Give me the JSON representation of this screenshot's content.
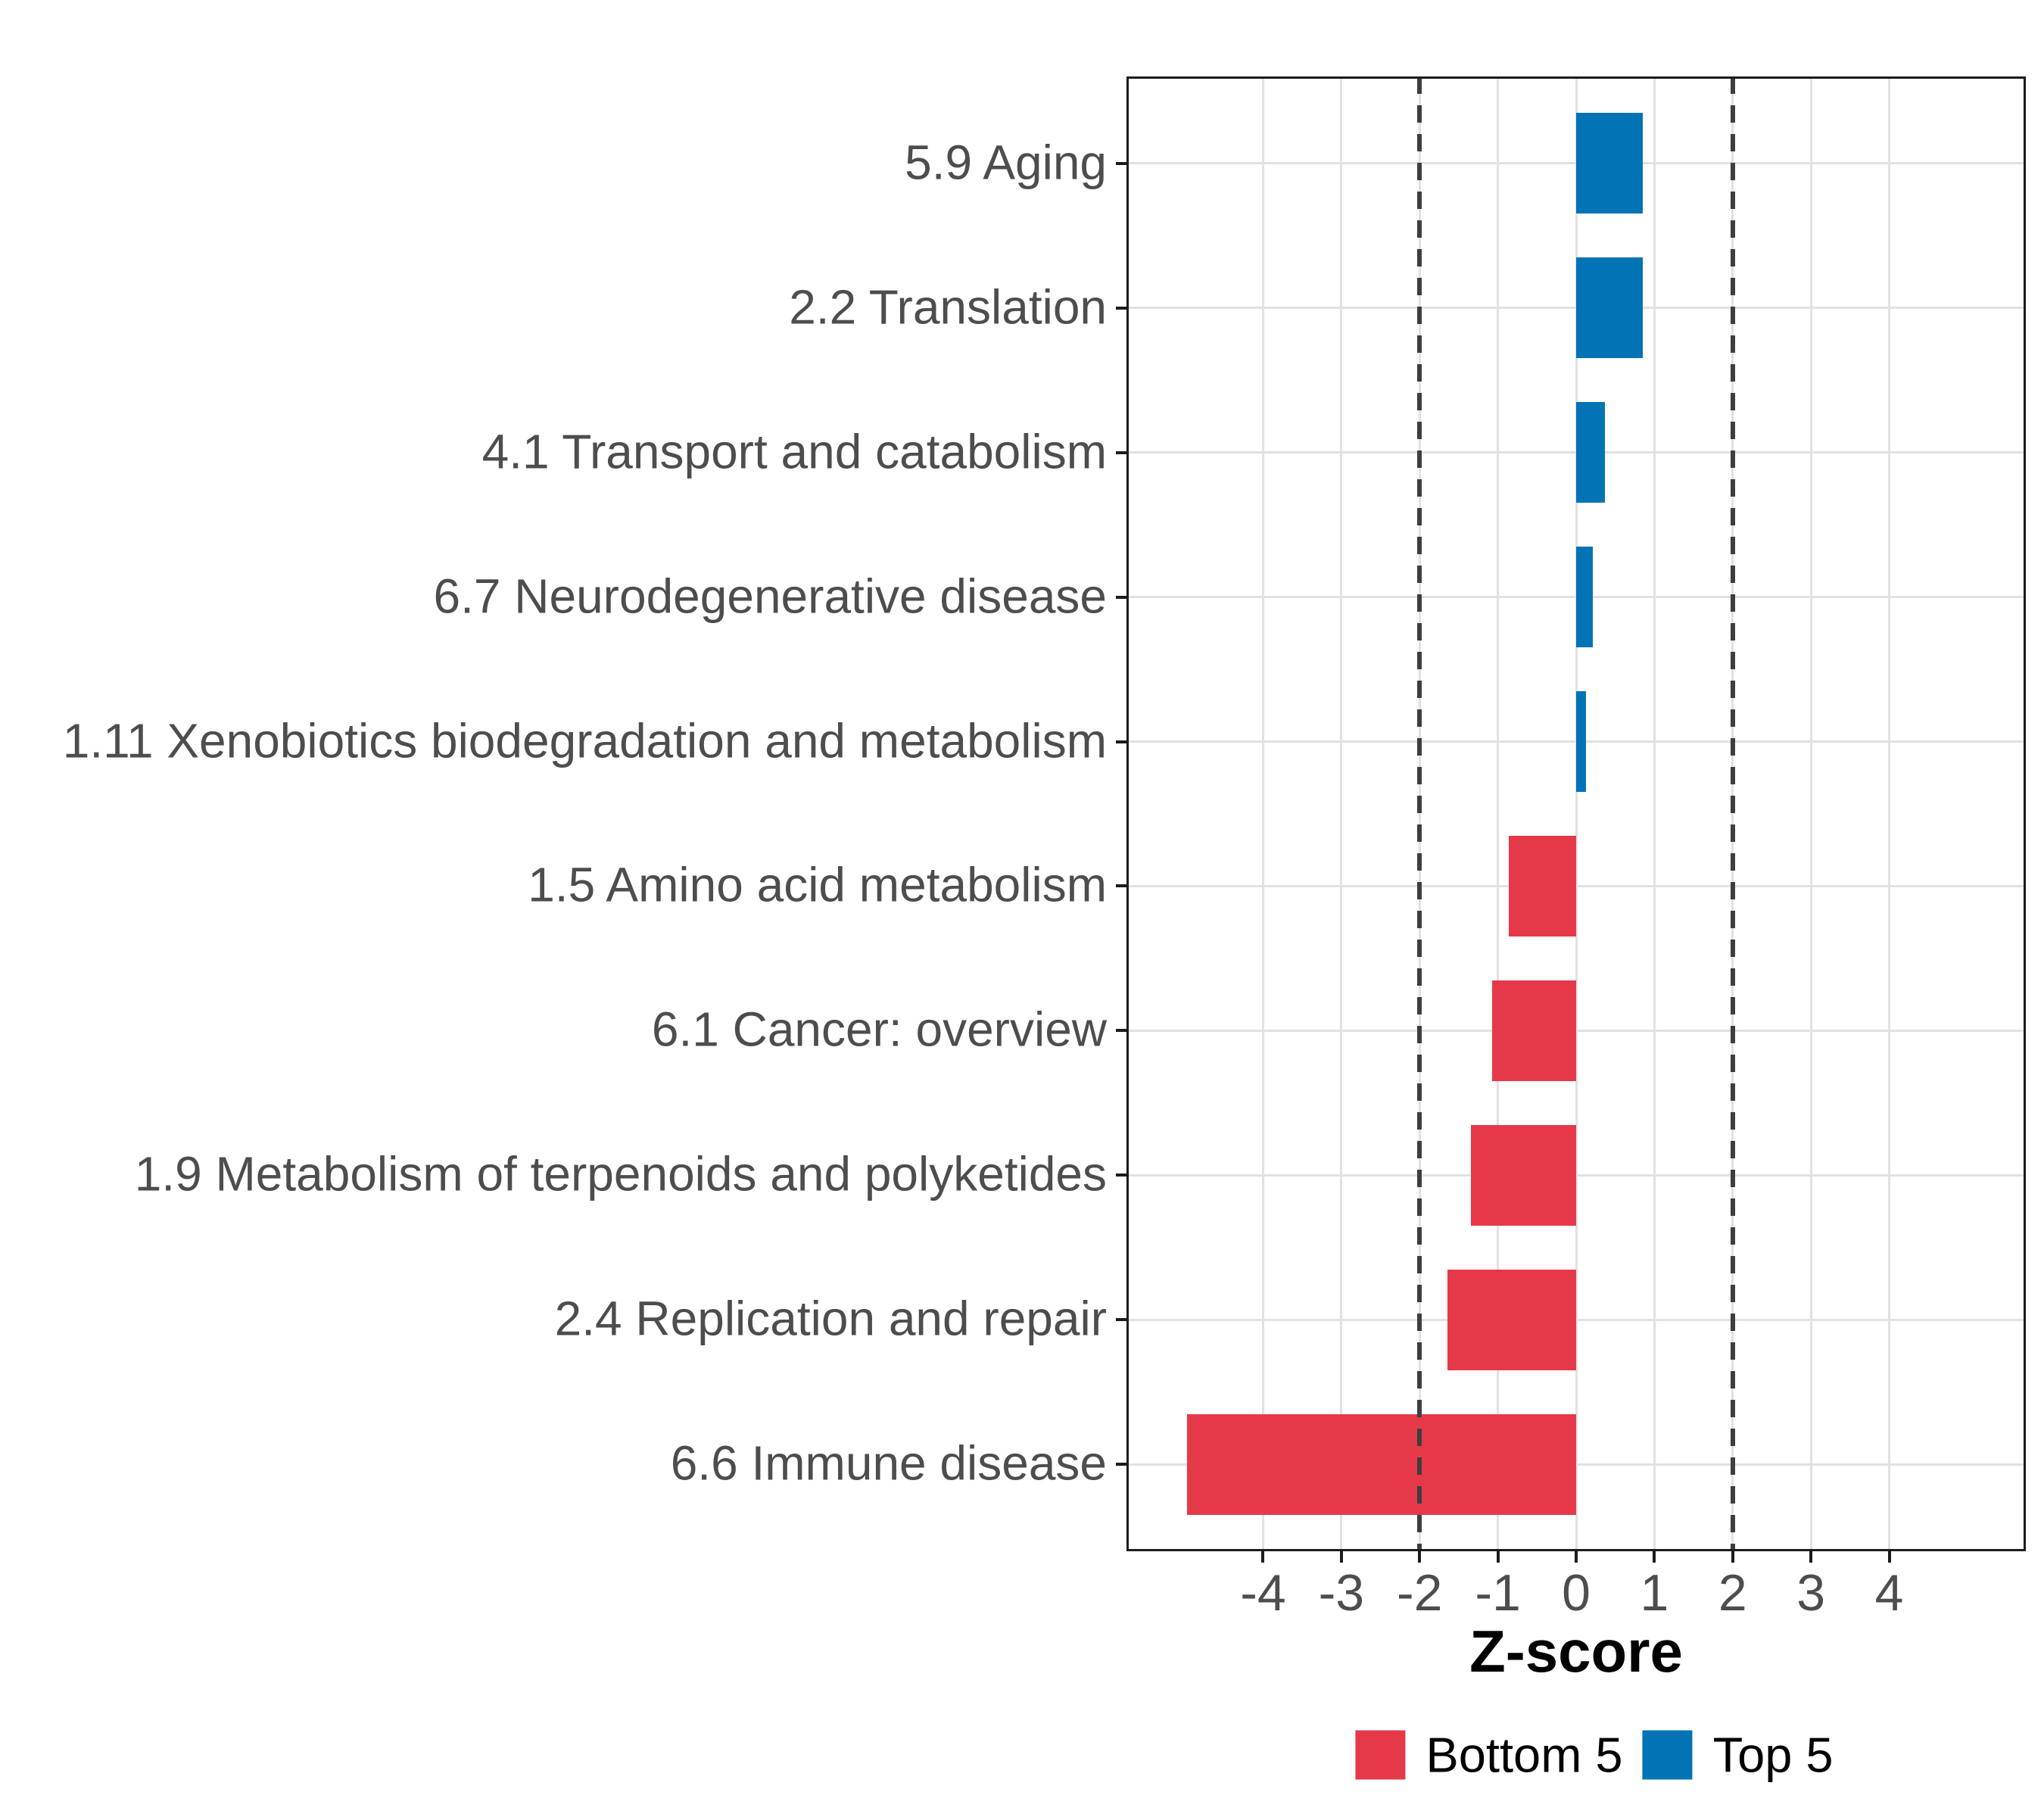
{
  "chart_data": {
    "type": "bar",
    "orientation": "horizontal",
    "xlabel": "Z-score",
    "categories": [
      "5.9 Aging",
      "2.2 Translation",
      "4.1 Transport and catabolism",
      "6.7 Neurodegenerative disease",
      "1.11 Xenobiotics biodegradation and metabolism",
      "1.5 Amino acid metabolism",
      "6.1 Cancer: overview",
      "1.9 Metabolism of terpenoids and polyketides",
      "2.4 Replication and repair",
      "6.6 Immune disease"
    ],
    "values": [
      0.85,
      0.85,
      0.37,
      0.21,
      0.13,
      -0.86,
      -1.07,
      -1.34,
      -1.64,
      -4.97
    ],
    "groups": [
      "Top 5",
      "Top 5",
      "Top 5",
      "Top 5",
      "Top 5",
      "Bottom 5",
      "Bottom 5",
      "Bottom 5",
      "Bottom 5",
      "Bottom 5"
    ],
    "legend_labels": [
      "Bottom 5",
      "Top 5"
    ],
    "colors": {
      "Bottom 5": "#E5394A",
      "Top 5": "#0274B6"
    },
    "x_ticks": [
      -4,
      -3,
      -2,
      -1,
      0,
      1,
      2,
      3,
      4
    ],
    "x_tick_labels": [
      "-4",
      "-3",
      "-2",
      "-1",
      "0",
      "1",
      "2",
      "3",
      "4"
    ],
    "xlim": [
      -5.745,
      5.745
    ],
    "reference_lines": [
      -2,
      2
    ],
    "reference_line_style": "dashed",
    "grid": "major-only",
    "legend_position": "bottom",
    "styles": {
      "grid_color": "#E1E1E1",
      "axis_text_color": "#4D4D4D",
      "axis_title_color": "#000000",
      "panel_border_color": "#1C1C1C",
      "reference_line_color": "#3E3E3E",
      "background": "#FFFFFF"
    }
  }
}
